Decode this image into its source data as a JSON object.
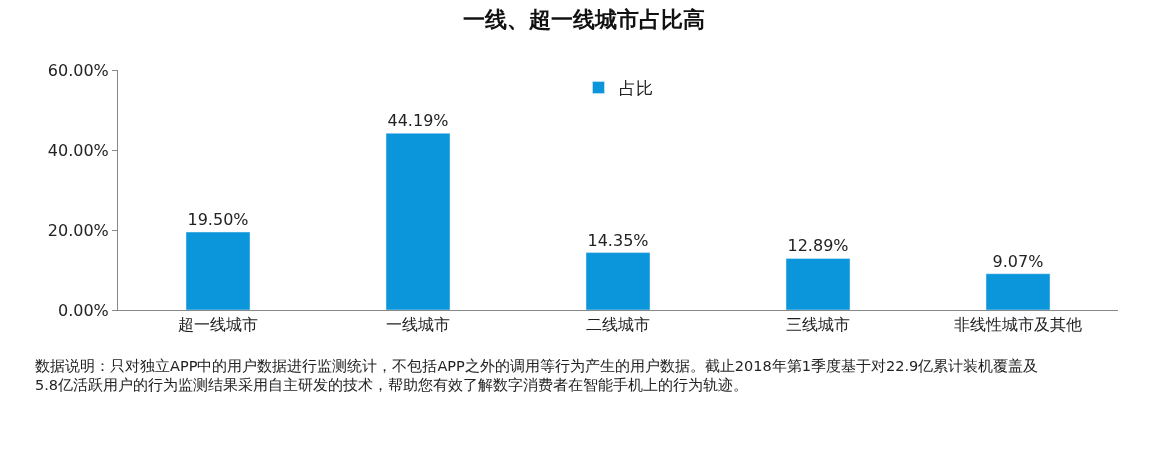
{
  "chart_data": {
    "type": "bar",
    "title": "一线、超一线城市占比高",
    "categories": [
      "超一线城市",
      "一线城市",
      "二线城市",
      "三线城市",
      "非线性城市及其他"
    ],
    "series": [
      {
        "name": "占比",
        "color": "#0b96dc",
        "values": [
          19.5,
          44.19,
          14.35,
          12.89,
          9.07
        ],
        "value_labels": [
          "19.50%",
          "44.19%",
          "14.35%",
          "12.89%",
          "9.07%"
        ]
      }
    ],
    "ylim": [
      0,
      60
    ],
    "yticks": [
      {
        "value": 0,
        "label": "0.00%"
      },
      {
        "value": 20,
        "label": "20.00%"
      },
      {
        "value": 40,
        "label": "40.00%"
      },
      {
        "value": 60,
        "label": "60.00%"
      }
    ],
    "legend": "top",
    "annotations": [
      "数据说明：只对独立APP中的用户数据进行监测统计，不包括APP之外的调用等行为产生的用户数据。截止2018年第1季度基于对22.9亿累计装机覆盖及5.8亿活跃用户的行为监测结果采用自主研发的技术，帮助您有效了解数字消费者在智能手机上的行为轨迹。"
    ]
  }
}
